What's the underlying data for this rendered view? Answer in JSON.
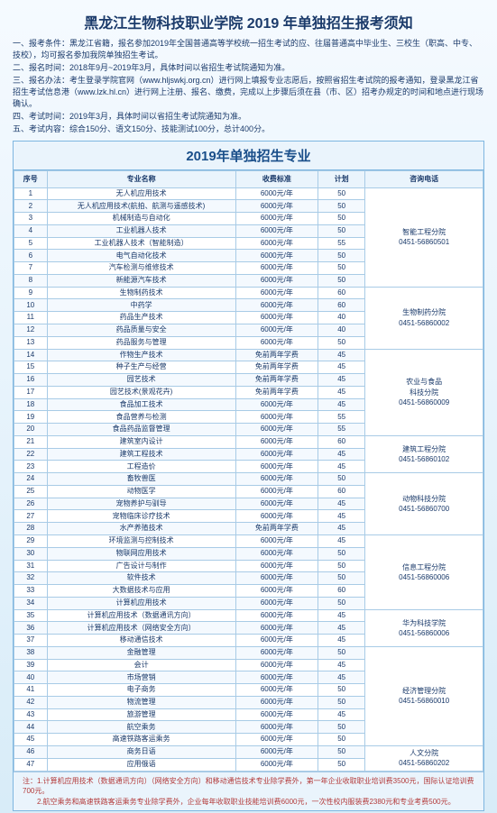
{
  "title": "黑龙江生物科技职业学院 2019 年单独招生报考须知",
  "intro_lines": [
    "一、报考条件：黑龙江省籍，报名参加2019年全国普通高等学校统一招生考试的应、往届普通高中毕业生、三校生（职高、中专、技校），均可报名参加我院单独招生考试。",
    "二、报名时间：2018年9月~2019年3月，具体时间以省招生考试院通知为准。",
    "三、报名办法：考生登录学院官网（www.hljswkj.org.cn）进行网上填报专业志愿后，按照省招生考试院的报考通知，登录黑龙江省招生考试信息港（www.lzk.hl.cn）进行网上注册、报名、缴费，完成以上步骤后须在县（市、区）招考办规定的时间和地点进行现场确认。",
    "四、考试时间：2019年3月，具体时间以省招生考试院通知为准。",
    "五、考试内容：综合150分、语文150分、技能测试100分，总计400分。"
  ],
  "sub_title": "2019年单独招生专业",
  "headers": {
    "idx": "序号",
    "name": "专业名称",
    "fee": "收费标准",
    "plan": "计划",
    "dept": "咨询电话"
  },
  "groups": [
    {
      "dept": "智能工程分院\n0451-56860501",
      "rows": [
        {
          "i": 1,
          "n": "无人机应用技术",
          "f": "6000元/年",
          "p": 50
        },
        {
          "i": 2,
          "n": "无人机应用技术(航拍、航测与遥感技术)",
          "f": "6000元/年",
          "p": 50
        },
        {
          "i": 3,
          "n": "机械制造与自动化",
          "f": "6000元/年",
          "p": 50
        },
        {
          "i": 4,
          "n": "工业机器人技术",
          "f": "6000元/年",
          "p": 50
        },
        {
          "i": 5,
          "n": "工业机器人技术（智能制造）",
          "f": "6000元/年",
          "p": 55
        },
        {
          "i": 6,
          "n": "电气自动化技术",
          "f": "6000元/年",
          "p": 50
        },
        {
          "i": 7,
          "n": "汽车检测与维修技术",
          "f": "6000元/年",
          "p": 50
        },
        {
          "i": 8,
          "n": "新能源汽车技术",
          "f": "6000元/年",
          "p": 50
        }
      ]
    },
    {
      "dept": "生物制药分院\n0451-56860002",
      "rows": [
        {
          "i": 9,
          "n": "生物制药技术",
          "f": "6000元/年",
          "p": 60
        },
        {
          "i": 10,
          "n": "中药学",
          "f": "6000元/年",
          "p": 60
        },
        {
          "i": 11,
          "n": "药品生产技术",
          "f": "6000元/年",
          "p": 40
        },
        {
          "i": 12,
          "n": "药品质量与安全",
          "f": "6000元/年",
          "p": 40
        },
        {
          "i": 13,
          "n": "药品服务与管理",
          "f": "6000元/年",
          "p": 50
        }
      ]
    },
    {
      "dept": "农业与食品\n科技分院\n0451-56860009",
      "rows": [
        {
          "i": 14,
          "n": "作物生产技术",
          "f": "免前两年学费",
          "p": 45
        },
        {
          "i": 15,
          "n": "种子生产与经营",
          "f": "免前两年学费",
          "p": 45
        },
        {
          "i": 16,
          "n": "园艺技术",
          "f": "免前两年学费",
          "p": 45
        },
        {
          "i": 17,
          "n": "园艺技术(景观花卉)",
          "f": "免前两年学费",
          "p": 45
        },
        {
          "i": 18,
          "n": "食品加工技术",
          "f": "6000元/年",
          "p": 45
        },
        {
          "i": 19,
          "n": "食品营养与检测",
          "f": "6000元/年",
          "p": 55
        },
        {
          "i": 20,
          "n": "食品药品监督管理",
          "f": "6000元/年",
          "p": 55
        }
      ]
    },
    {
      "dept": "建筑工程分院\n0451-56860102",
      "rows": [
        {
          "i": 21,
          "n": "建筑室内设计",
          "f": "6000元/年",
          "p": 60
        },
        {
          "i": 22,
          "n": "建筑工程技术",
          "f": "6000元/年",
          "p": 45
        },
        {
          "i": 23,
          "n": "工程造价",
          "f": "6000元/年",
          "p": 45
        }
      ]
    },
    {
      "dept": "动物科技分院\n0451-56860700",
      "rows": [
        {
          "i": 24,
          "n": "畜牧兽医",
          "f": "6000元/年",
          "p": 50
        },
        {
          "i": 25,
          "n": "动物医学",
          "f": "6000元/年",
          "p": 60
        },
        {
          "i": 26,
          "n": "宠物养护与驯导",
          "f": "6000元/年",
          "p": 45
        },
        {
          "i": 27,
          "n": "宠物临床诊疗技术",
          "f": "6000元/年",
          "p": 45
        },
        {
          "i": 28,
          "n": "水产养殖技术",
          "f": "免前两年学费",
          "p": 45
        }
      ]
    },
    {
      "dept": "信息工程分院\n0451-56860006",
      "rows": [
        {
          "i": 29,
          "n": "环境监测与控制技术",
          "f": "6000元/年",
          "p": 45
        },
        {
          "i": 30,
          "n": "物联网应用技术",
          "f": "6000元/年",
          "p": 50
        },
        {
          "i": 31,
          "n": "广告设计与制作",
          "f": "6000元/年",
          "p": 50
        },
        {
          "i": 32,
          "n": "软件技术",
          "f": "6000元/年",
          "p": 50
        },
        {
          "i": 33,
          "n": "大数据技术与应用",
          "f": "6000元/年",
          "p": 60
        },
        {
          "i": 34,
          "n": "计算机应用技术",
          "f": "6000元/年",
          "p": 50
        }
      ]
    },
    {
      "dept": "华为科技学院\n0451-56860006",
      "rows": [
        {
          "i": 35,
          "n": "计算机应用技术（数据通讯方向）",
          "f": "6000元/年",
          "p": 45
        },
        {
          "i": 36,
          "n": "计算机应用技术（网络安全方向）",
          "f": "6000元/年",
          "p": 45
        },
        {
          "i": 37,
          "n": "移动通信技术",
          "f": "6000元/年",
          "p": 45
        }
      ]
    },
    {
      "dept": "经济管理分院\n0451-56860010",
      "rows": [
        {
          "i": 38,
          "n": "金融管理",
          "f": "6000元/年",
          "p": 50
        },
        {
          "i": 39,
          "n": "会计",
          "f": "6000元/年",
          "p": 45
        },
        {
          "i": 40,
          "n": "市场营销",
          "f": "6000元/年",
          "p": 45
        },
        {
          "i": 41,
          "n": "电子商务",
          "f": "6000元/年",
          "p": 50
        },
        {
          "i": 42,
          "n": "物流管理",
          "f": "6000元/年",
          "p": 50
        },
        {
          "i": 43,
          "n": "旅游管理",
          "f": "6000元/年",
          "p": 45
        },
        {
          "i": 44,
          "n": "航空乘务",
          "f": "6000元/年",
          "p": 50
        },
        {
          "i": 45,
          "n": "高速铁路客运乘务",
          "f": "6000元/年",
          "p": 50
        }
      ]
    },
    {
      "dept": "人文分院\n0451-56860202",
      "rows": [
        {
          "i": 46,
          "n": "商务日语",
          "f": "6000元/年",
          "p": 50
        },
        {
          "i": 47,
          "n": "应用俄语",
          "f": "6000元/年",
          "p": 50
        }
      ]
    }
  ],
  "notes": [
    "注：1.计算机应用技术（数据通讯方向）（网络安全方向）和移动通信技术专业除学费外，第一年企业收取职业培训费3500元，国际认证培训费700元。",
    "　　2.航空乘务和高速铁路客运乘务专业除学费外，企业每年收取职业技能培训费6000元，一次性校内服装费2380元和专业考费500元。"
  ],
  "colors": {
    "border": "#a8cbe6",
    "header_bg": "#eaf4fc",
    "text": "#1a3a6a",
    "note": "#b33a3a"
  }
}
